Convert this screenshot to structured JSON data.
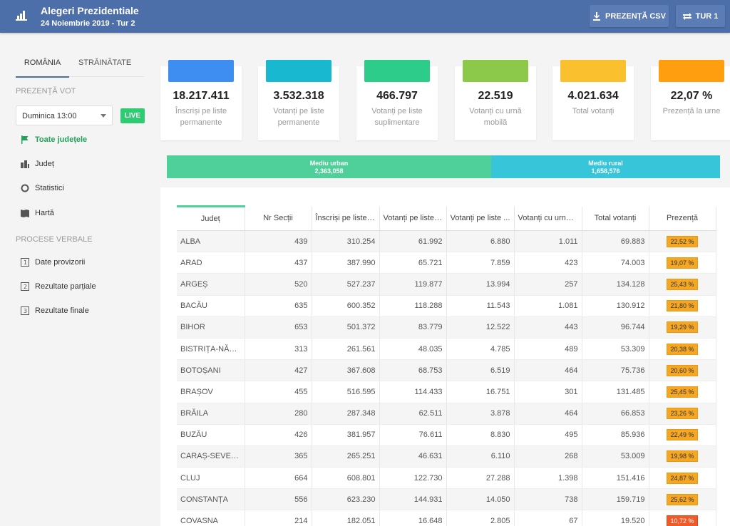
{
  "header": {
    "title": "Alegeri Prezidentiale",
    "subtitle": "24 Noiembrie 2019 - Tur 2",
    "csv_button": "PREZENȚĂ CSV",
    "tur_button": "TUR 1"
  },
  "sidebar": {
    "tab_romania": "ROMÂNIA",
    "tab_strainatate": "STRĂINĂTATE",
    "section_prezenta": "PREZENȚĂ VOT",
    "select_value": "Duminica 13:00",
    "live_label": "LIVE",
    "nav": [
      {
        "label": "Toate județele",
        "icon": "flag-icon"
      },
      {
        "label": "Județ",
        "icon": "building-icon"
      },
      {
        "label": "Statistici",
        "icon": "circle-icon"
      },
      {
        "label": "Hartă",
        "icon": "map-icon"
      }
    ],
    "section_procese": "PROCESE VERBALE",
    "nav2": [
      {
        "label": "Date provizorii",
        "icon": "doc-1-icon"
      },
      {
        "label": "Rezultate parțiale",
        "icon": "doc-2-icon"
      },
      {
        "label": "Rezultate finale",
        "icon": "doc-3-icon"
      }
    ]
  },
  "cards": [
    {
      "value": "18.217.411",
      "label": "Înscriși pe liste permanente",
      "color": "#3d8ef0"
    },
    {
      "value": "3.532.318",
      "label": "Votanți pe liste permanente",
      "color": "#17b8d0"
    },
    {
      "value": "466.797",
      "label": "Votanți pe liste suplimentare",
      "color": "#2ecc8a"
    },
    {
      "value": "22.519",
      "label": "Votanți cu urnă mobilă",
      "color": "#8cc94a"
    },
    {
      "value": "4.021.634",
      "label": "Total votanți",
      "color": "#fbc02d"
    },
    {
      "value": "22,07 %",
      "label": "Prezență la urne",
      "color": "#ff9f10"
    }
  ],
  "split": {
    "urban_label": "Mediu urban",
    "urban_value": "2,363,058",
    "rural_label": "Mediu rural",
    "rural_value": "1,658,576"
  },
  "table": {
    "columns": [
      "Județ",
      "Nr Secții",
      "Înscriși pe liste ...",
      "Votanți pe liste ...",
      "Votanți pe liste ...",
      "Votanți cu urnă ...",
      "Total votanți",
      "Prezență"
    ],
    "rows": [
      [
        "ALBA",
        "439",
        "310.254",
        "61.992",
        "6.880",
        "1.011",
        "69.883",
        "22,52 %"
      ],
      [
        "ARAD",
        "437",
        "387.990",
        "65.721",
        "7.859",
        "423",
        "74.003",
        "19,07 %"
      ],
      [
        "ARGEȘ",
        "520",
        "527.237",
        "119.877",
        "13.994",
        "257",
        "134.128",
        "25,43 %"
      ],
      [
        "BACĂU",
        "635",
        "600.352",
        "118.288",
        "11.543",
        "1.081",
        "130.912",
        "21,80 %"
      ],
      [
        "BIHOR",
        "653",
        "501.372",
        "83.779",
        "12.522",
        "443",
        "96.744",
        "19,29 %"
      ],
      [
        "BISTRIȚA-NĂS...",
        "313",
        "261.561",
        "48.035",
        "4.785",
        "489",
        "53.309",
        "20,38 %"
      ],
      [
        "BOTOȘANI",
        "427",
        "367.608",
        "68.753",
        "6.519",
        "464",
        "75.736",
        "20,60 %"
      ],
      [
        "BRAȘOV",
        "455",
        "516.595",
        "114.433",
        "16.751",
        "301",
        "131.485",
        "25,45 %"
      ],
      [
        "BRĂILA",
        "280",
        "287.348",
        "62.511",
        "3.878",
        "464",
        "66.853",
        "23,26 %"
      ],
      [
        "BUZĂU",
        "426",
        "381.957",
        "76.611",
        "8.830",
        "495",
        "85.936",
        "22,49 %"
      ],
      [
        "CARAȘ-SEVERIN",
        "365",
        "265.251",
        "46.631",
        "6.110",
        "268",
        "53.009",
        "19,98 %"
      ],
      [
        "CLUJ",
        "664",
        "608.801",
        "122.730",
        "27.288",
        "1.398",
        "151.416",
        "24,87 %"
      ],
      [
        "CONSTANȚA",
        "556",
        "623.230",
        "144.931",
        "14.050",
        "738",
        "159.719",
        "25,62 %"
      ],
      [
        "COVASNA",
        "214",
        "182.051",
        "16.648",
        "2.805",
        "67",
        "19.520",
        "10,72 %"
      ]
    ]
  }
}
